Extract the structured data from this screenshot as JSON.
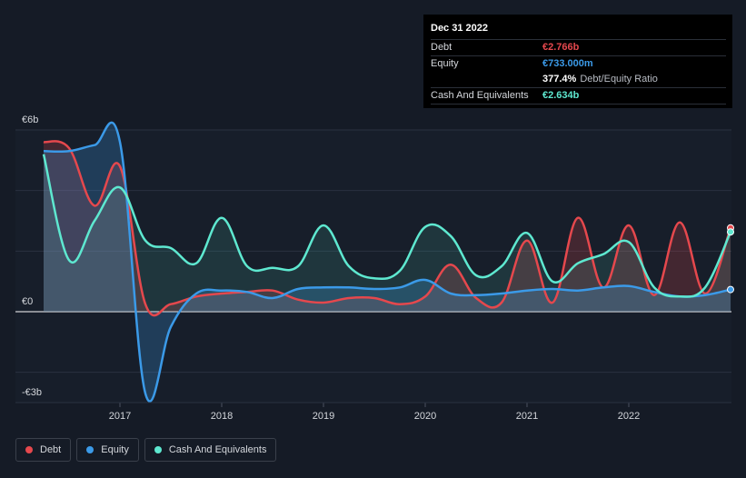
{
  "tooltip": {
    "date": "Dec 31 2022",
    "rows": [
      {
        "label": "Debt",
        "value": "€2.766b",
        "color": "#e5484d"
      },
      {
        "label": "Equity",
        "value": "€733.000m",
        "color": "#3b9ae8"
      },
      {
        "label": "",
        "value": "377.4%",
        "note": "Debt/Equity Ratio",
        "color": "#ffffff"
      },
      {
        "label": "Cash And Equivalents",
        "value": "€2.634b",
        "color": "#5ee8d0"
      }
    ]
  },
  "legend": [
    {
      "label": "Debt",
      "color": "#e5484d"
    },
    {
      "label": "Equity",
      "color": "#3b9ae8"
    },
    {
      "label": "Cash And Equivalents",
      "color": "#5ee8d0"
    }
  ],
  "chart_data": {
    "type": "area",
    "ylim": [
      -3,
      6
    ],
    "y_ticks": [
      {
        "value": 6,
        "label": "€6b"
      },
      {
        "value": 0,
        "label": "€0"
      },
      {
        "value": -3,
        "label": "-€3b"
      }
    ],
    "x_ticks": [
      {
        "value": 2017,
        "label": "2017"
      },
      {
        "value": 2018,
        "label": "2018"
      },
      {
        "value": 2019,
        "label": "2019"
      },
      {
        "value": 2020,
        "label": "2020"
      },
      {
        "value": 2021,
        "label": "2021"
      },
      {
        "value": 2022,
        "label": "2022"
      }
    ],
    "xlim": [
      2016.25,
      2023.0
    ],
    "series": [
      {
        "name": "Debt",
        "color": "#e5484d",
        "x": [
          2016.25,
          2016.5,
          2016.75,
          2017.0,
          2017.25,
          2017.5,
          2017.75,
          2018.0,
          2018.25,
          2018.5,
          2018.75,
          2019.0,
          2019.25,
          2019.5,
          2019.75,
          2020.0,
          2020.25,
          2020.5,
          2020.75,
          2021.0,
          2021.25,
          2021.5,
          2021.75,
          2022.0,
          2022.25,
          2022.5,
          2022.75,
          2023.0
        ],
        "values": [
          5.6,
          5.4,
          3.5,
          4.8,
          0.25,
          0.25,
          0.5,
          0.6,
          0.65,
          0.7,
          0.4,
          0.3,
          0.45,
          0.45,
          0.25,
          0.5,
          1.55,
          0.45,
          0.3,
          2.35,
          0.3,
          3.1,
          0.8,
          2.85,
          0.55,
          2.95,
          0.6,
          2.766
        ]
      },
      {
        "name": "Equity",
        "color": "#3b9ae8",
        "x": [
          2016.25,
          2016.5,
          2016.75,
          2017.0,
          2017.25,
          2017.5,
          2017.75,
          2018.0,
          2018.25,
          2018.5,
          2018.75,
          2019.0,
          2019.25,
          2019.5,
          2019.75,
          2020.0,
          2020.25,
          2020.5,
          2020.75,
          2021.0,
          2021.25,
          2021.5,
          2021.75,
          2022.0,
          2022.25,
          2022.5,
          2022.75,
          2023.0
        ],
        "values": [
          5.3,
          5.3,
          5.5,
          5.6,
          -2.7,
          -0.5,
          0.6,
          0.7,
          0.65,
          0.45,
          0.75,
          0.8,
          0.8,
          0.75,
          0.8,
          1.05,
          0.6,
          0.55,
          0.6,
          0.7,
          0.75,
          0.7,
          0.8,
          0.85,
          0.65,
          0.5,
          0.55,
          0.733
        ]
      },
      {
        "name": "Cash And Equivalents",
        "color": "#5ee8d0",
        "x": [
          2016.25,
          2016.5,
          2016.75,
          2017.0,
          2017.25,
          2017.5,
          2017.75,
          2018.0,
          2018.25,
          2018.5,
          2018.75,
          2019.0,
          2019.25,
          2019.5,
          2019.75,
          2020.0,
          2020.25,
          2020.5,
          2020.75,
          2021.0,
          2021.25,
          2021.5,
          2021.75,
          2022.0,
          2022.25,
          2022.5,
          2022.75,
          2023.0
        ],
        "values": [
          5.2,
          1.7,
          3.0,
          4.1,
          2.35,
          2.1,
          1.6,
          3.1,
          1.5,
          1.45,
          1.5,
          2.85,
          1.5,
          1.1,
          1.35,
          2.8,
          2.5,
          1.2,
          1.5,
          2.6,
          1.0,
          1.6,
          1.9,
          2.3,
          0.8,
          0.5,
          0.8,
          2.634
        ]
      }
    ]
  }
}
